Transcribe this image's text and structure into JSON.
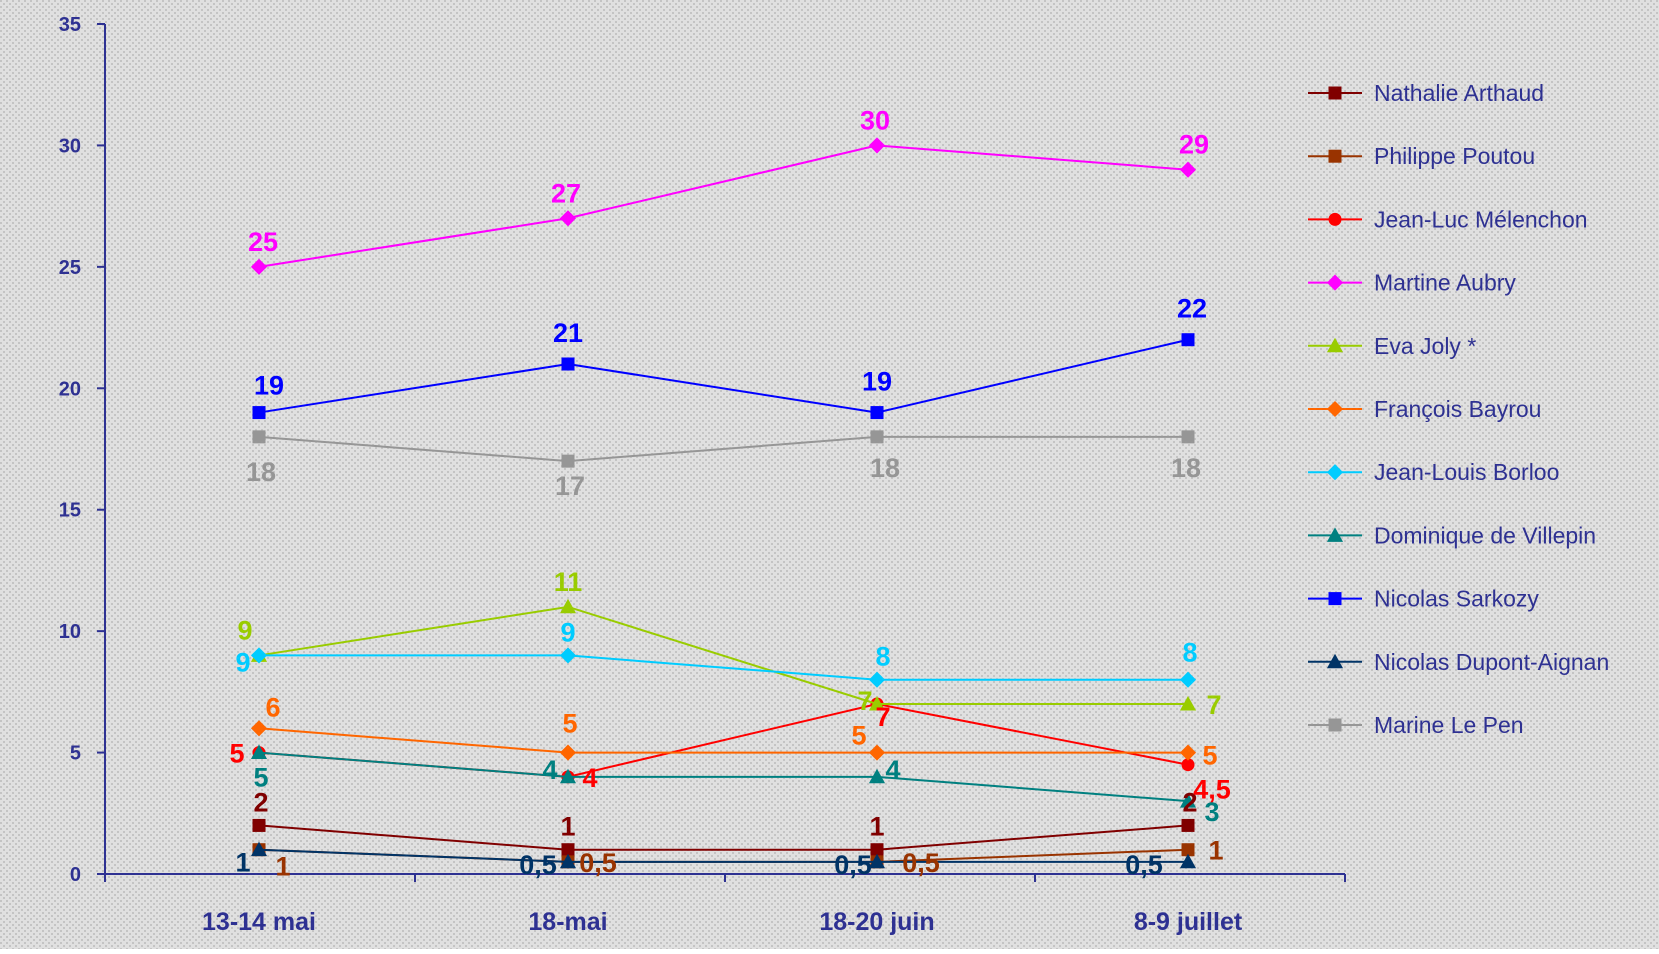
{
  "chart_data": {
    "type": "line",
    "categories": [
      "13-14 mai",
      "18-mai",
      "18-20 juin",
      "8-9 juillet"
    ],
    "ylim": [
      0,
      35
    ],
    "yticks": [
      0,
      5,
      10,
      15,
      20,
      25,
      30,
      35
    ],
    "grid": "dotted",
    "legend_position": "right",
    "background_color": "#e0e0e0",
    "axis_color": "#2e3192",
    "series": [
      {
        "name": "Nathalie Arthaud",
        "values": [
          2,
          1,
          1,
          2
        ],
        "labels": [
          "2",
          "1",
          "1",
          "2"
        ],
        "color": "#800000",
        "marker": "square"
      },
      {
        "name": "Philippe Poutou",
        "values": [
          1,
          0.5,
          0.5,
          1
        ],
        "labels": [
          "1",
          "0,5",
          "0,5",
          "1"
        ],
        "color": "#993300",
        "marker": "square"
      },
      {
        "name": "Jean-Luc Mélenchon",
        "values": [
          5,
          4,
          7,
          4.5
        ],
        "labels": [
          "5",
          "4",
          "7",
          "4,5"
        ],
        "color": "#ff0000",
        "marker": "circle"
      },
      {
        "name": "Martine Aubry",
        "values": [
          25,
          27,
          30,
          29
        ],
        "labels": [
          "25",
          "27",
          "30",
          "29"
        ],
        "color": "#ff00ff",
        "marker": "diamond"
      },
      {
        "name": "Eva Joly *",
        "values": [
          9,
          11,
          7,
          7
        ],
        "labels": [
          "9",
          "11",
          "7",
          "7"
        ],
        "color": "#99cc00",
        "marker": "triangle"
      },
      {
        "name": "François Bayrou",
        "values": [
          6,
          5,
          5,
          5
        ],
        "labels": [
          "6",
          "5",
          "5",
          "5"
        ],
        "color": "#ff6600",
        "marker": "diamond"
      },
      {
        "name": "Jean-Louis Borloo",
        "values": [
          9,
          9,
          8,
          8
        ],
        "labels": [
          "9",
          "9",
          "8",
          "8"
        ],
        "color": "#00ccff",
        "marker": "diamond"
      },
      {
        "name": "Dominique de Villepin",
        "values": [
          5,
          4,
          4,
          3
        ],
        "labels": [
          "5",
          "4",
          "4",
          "3"
        ],
        "color": "#008080",
        "marker": "triangle"
      },
      {
        "name": "Nicolas Sarkozy",
        "values": [
          19,
          21,
          19,
          22
        ],
        "labels": [
          "19",
          "21",
          "19",
          "22"
        ],
        "color": "#0000ff",
        "marker": "square"
      },
      {
        "name": "Nicolas Dupont-Aignan",
        "values": [
          1,
          0.5,
          0.5,
          0.5
        ],
        "labels": [
          "1",
          "0,5",
          "0,5",
          "0,5"
        ],
        "color": "#003366",
        "marker": "triangle"
      },
      {
        "name": "Marine Le Pen",
        "values": [
          18,
          17,
          18,
          18
        ],
        "labels": [
          "18",
          "17",
          "18",
          "18"
        ],
        "color": "#969696",
        "marker": "square"
      }
    ]
  }
}
